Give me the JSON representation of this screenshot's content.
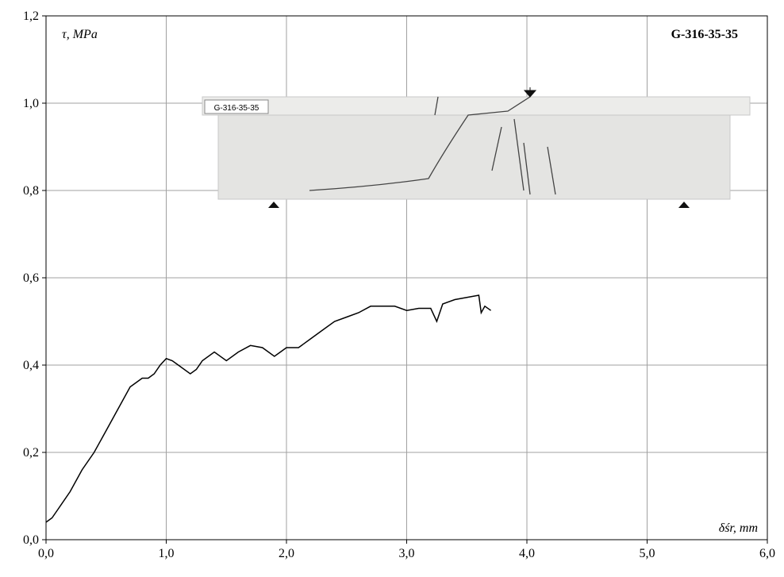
{
  "chart_data": {
    "type": "line",
    "title": "G-316-35-35",
    "y_label": "τ, MPa",
    "x_label": "δśr, mm",
    "annotations": [
      "G-316-35-35"
    ],
    "xlim": [
      0,
      6
    ],
    "ylim": [
      0,
      1.2
    ],
    "xticks": [
      {
        "value": 0,
        "label": "0,0"
      },
      {
        "value": 1,
        "label": "1,0"
      },
      {
        "value": 2,
        "label": "2,0"
      },
      {
        "value": 3,
        "label": "3,0"
      },
      {
        "value": 4,
        "label": "4,0"
      },
      {
        "value": 5,
        "label": "5,0"
      },
      {
        "value": 6,
        "label": "6,0"
      }
    ],
    "yticks": [
      {
        "value": 0,
        "label": "0,0"
      },
      {
        "value": 0.2,
        "label": "0,2"
      },
      {
        "value": 0.4,
        "label": "0,4"
      },
      {
        "value": 0.6,
        "label": "0,6"
      },
      {
        "value": 0.8,
        "label": "0,8"
      },
      {
        "value": 1.0,
        "label": "1,0"
      },
      {
        "value": 1.2,
        "label": "1,2"
      }
    ],
    "grid": true,
    "series": [
      {
        "color": "#000000",
        "x": [
          0,
          0.05,
          0.1,
          0.2,
          0.3,
          0.4,
          0.5,
          0.6,
          0.7,
          0.75,
          0.8,
          0.85,
          0.9,
          0.95,
          1.0,
          1.05,
          1.1,
          1.2,
          1.25,
          1.3,
          1.4,
          1.5,
          1.6,
          1.7,
          1.8,
          1.9,
          1.95,
          2.0,
          2.1,
          2.2,
          2.3,
          2.4,
          2.5,
          2.6,
          2.7,
          2.8,
          2.9,
          3.0,
          3.1,
          3.2,
          3.25,
          3.3,
          3.4,
          3.5,
          3.6,
          3.62,
          3.65,
          3.7
        ],
        "values": [
          0.04,
          0.05,
          0.07,
          0.11,
          0.16,
          0.2,
          0.25,
          0.3,
          0.35,
          0.36,
          0.37,
          0.37,
          0.38,
          0.4,
          0.415,
          0.41,
          0.4,
          0.38,
          0.39,
          0.41,
          0.43,
          0.41,
          0.43,
          0.445,
          0.44,
          0.42,
          0.43,
          0.44,
          0.44,
          0.46,
          0.48,
          0.5,
          0.51,
          0.52,
          0.535,
          0.535,
          0.535,
          0.525,
          0.53,
          0.53,
          0.5,
          0.54,
          0.55,
          0.555,
          0.56,
          0.52,
          0.535,
          0.525
        ]
      }
    ]
  }
}
